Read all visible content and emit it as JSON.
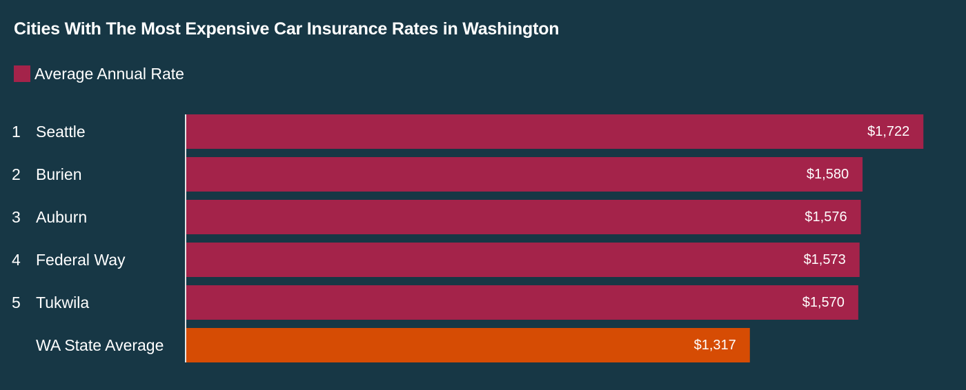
{
  "title": "Cities With The Most Expensive Car Insurance Rates in Washington",
  "legend": {
    "label": "Average Annual Rate",
    "color": "#a4234a"
  },
  "colors": {
    "background": "#173745",
    "city_bar": "#a4234a",
    "average_bar": "#d64c04",
    "axis": "#e6e6e6"
  },
  "chart_data": {
    "type": "bar",
    "orientation": "horizontal",
    "title": "Cities With The Most Expensive Car Insurance Rates in Washington",
    "ranks": [
      "1",
      "2",
      "3",
      "4",
      "5",
      ""
    ],
    "categories": [
      "Seattle",
      "Burien",
      "Auburn",
      "Federal Way",
      "Tukwila",
      "WA State Average"
    ],
    "series": [
      {
        "name": "Average Annual Rate",
        "values": [
          1722,
          1580,
          1576,
          1573,
          1570,
          1317
        ]
      }
    ],
    "value_labels": [
      "$1,722",
      "$1,580",
      "$1,576",
      "$1,573",
      "$1,570",
      "$1,317"
    ],
    "xlim": [
      0,
      1757
    ],
    "grid": false,
    "legend_position": "top-left"
  }
}
